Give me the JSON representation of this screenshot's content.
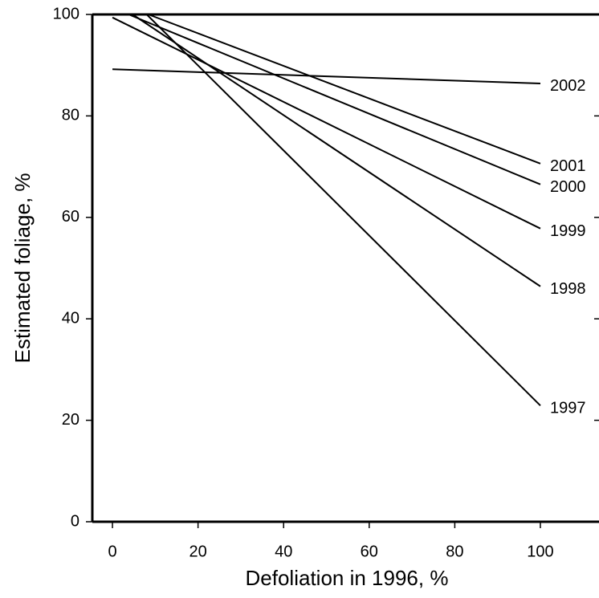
{
  "chart_data": {
    "type": "line",
    "x_label": "Defoliation in 1996, %",
    "y_label": "Estimated foliage, %",
    "xlim": [
      -4.7,
      113.7
    ],
    "ylim": [
      0,
      100
    ],
    "xticks": [
      0,
      20,
      40,
      60,
      80,
      100
    ],
    "yticks": [
      0,
      20,
      40,
      60,
      80,
      100
    ],
    "series": [
      {
        "name": "1997",
        "color": "#000000",
        "x": [
          8,
          100
        ],
        "values": [
          100,
          22.9
        ]
      },
      {
        "name": "1998",
        "color": "#000000",
        "x": [
          4.7,
          100
        ],
        "values": [
          100,
          46.4
        ]
      },
      {
        "name": "1999",
        "color": "#000000",
        "x": [
          0,
          100
        ],
        "values": [
          99.4,
          57.8
        ]
      },
      {
        "name": "2000",
        "color": "#000000",
        "x": [
          3.8,
          100
        ],
        "values": [
          100,
          66.5
        ]
      },
      {
        "name": "2001",
        "color": "#000000",
        "x": [
          8.4,
          100
        ],
        "values": [
          100,
          70.6
        ]
      },
      {
        "name": "2002",
        "color": "#000000",
        "x": [
          0,
          100
        ],
        "values": [
          89.2,
          86.4
        ]
      }
    ]
  }
}
